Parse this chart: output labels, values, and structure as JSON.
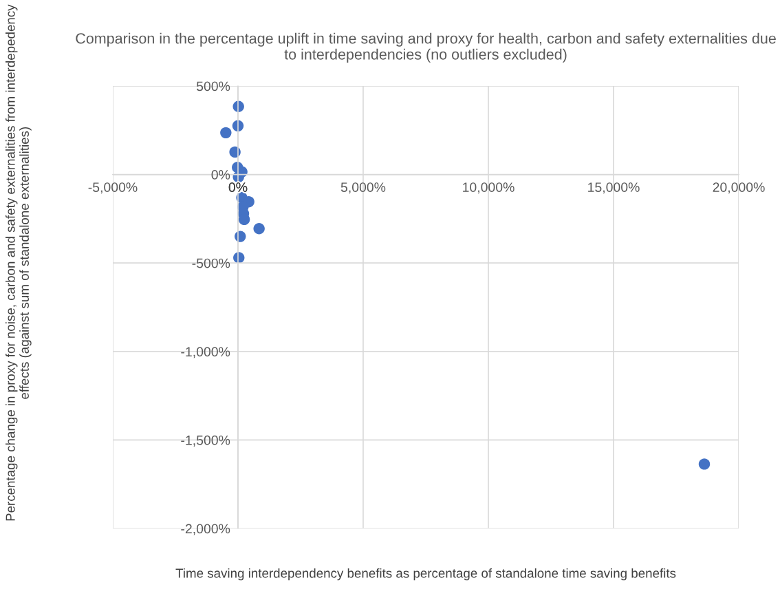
{
  "chart_data": {
    "type": "scatter",
    "title": "Comparison in the percentage uplift in time saving and proxy for health, carbon and safety externalities due to interdependencies (no outliers excluded)",
    "xlabel": "Time saving interdependency benefits as percentage of standalone time saving benefits",
    "ylabel": "Percentage change in proxy for noise, carbon and safety externalities from interdepedency effects (against sum of standalone externalities)",
    "series": [
      {
        "color": "#4472c4",
        "x": [
          20,
          0,
          -485,
          -120,
          -20,
          155,
          20,
          155,
          430,
          200,
          220,
          250,
          843,
          90,
          35,
          18626
        ],
        "values": [
          384,
          275,
          236,
          127,
          40,
          15,
          -14,
          -131,
          -154,
          -183,
          -221,
          -254,
          -306,
          -350,
          -470,
          -1636
        ]
      }
    ],
    "xlim": [
      -5000,
      20000
    ],
    "xticks": [
      {
        "value": -5000,
        "label": "-5,000%"
      },
      {
        "value": 0,
        "label": "0%"
      },
      {
        "value": 5000,
        "label": "5,000%"
      },
      {
        "value": 10000,
        "label": "10,000%"
      },
      {
        "value": 15000,
        "label": "15,000%"
      },
      {
        "value": 20000,
        "label": "20,000%"
      }
    ],
    "ylim": [
      -2000,
      500
    ],
    "yticks": [
      {
        "value": -2000,
        "label": "-2,000%"
      },
      {
        "value": -1500,
        "label": "-1,500%"
      },
      {
        "value": -1000,
        "label": "-1,000%"
      },
      {
        "value": -500,
        "label": "-500%"
      },
      {
        "value": 0,
        "label": "0%"
      },
      {
        "value": 500,
        "label": "500%"
      }
    ],
    "grid": true,
    "marker": "circle"
  }
}
